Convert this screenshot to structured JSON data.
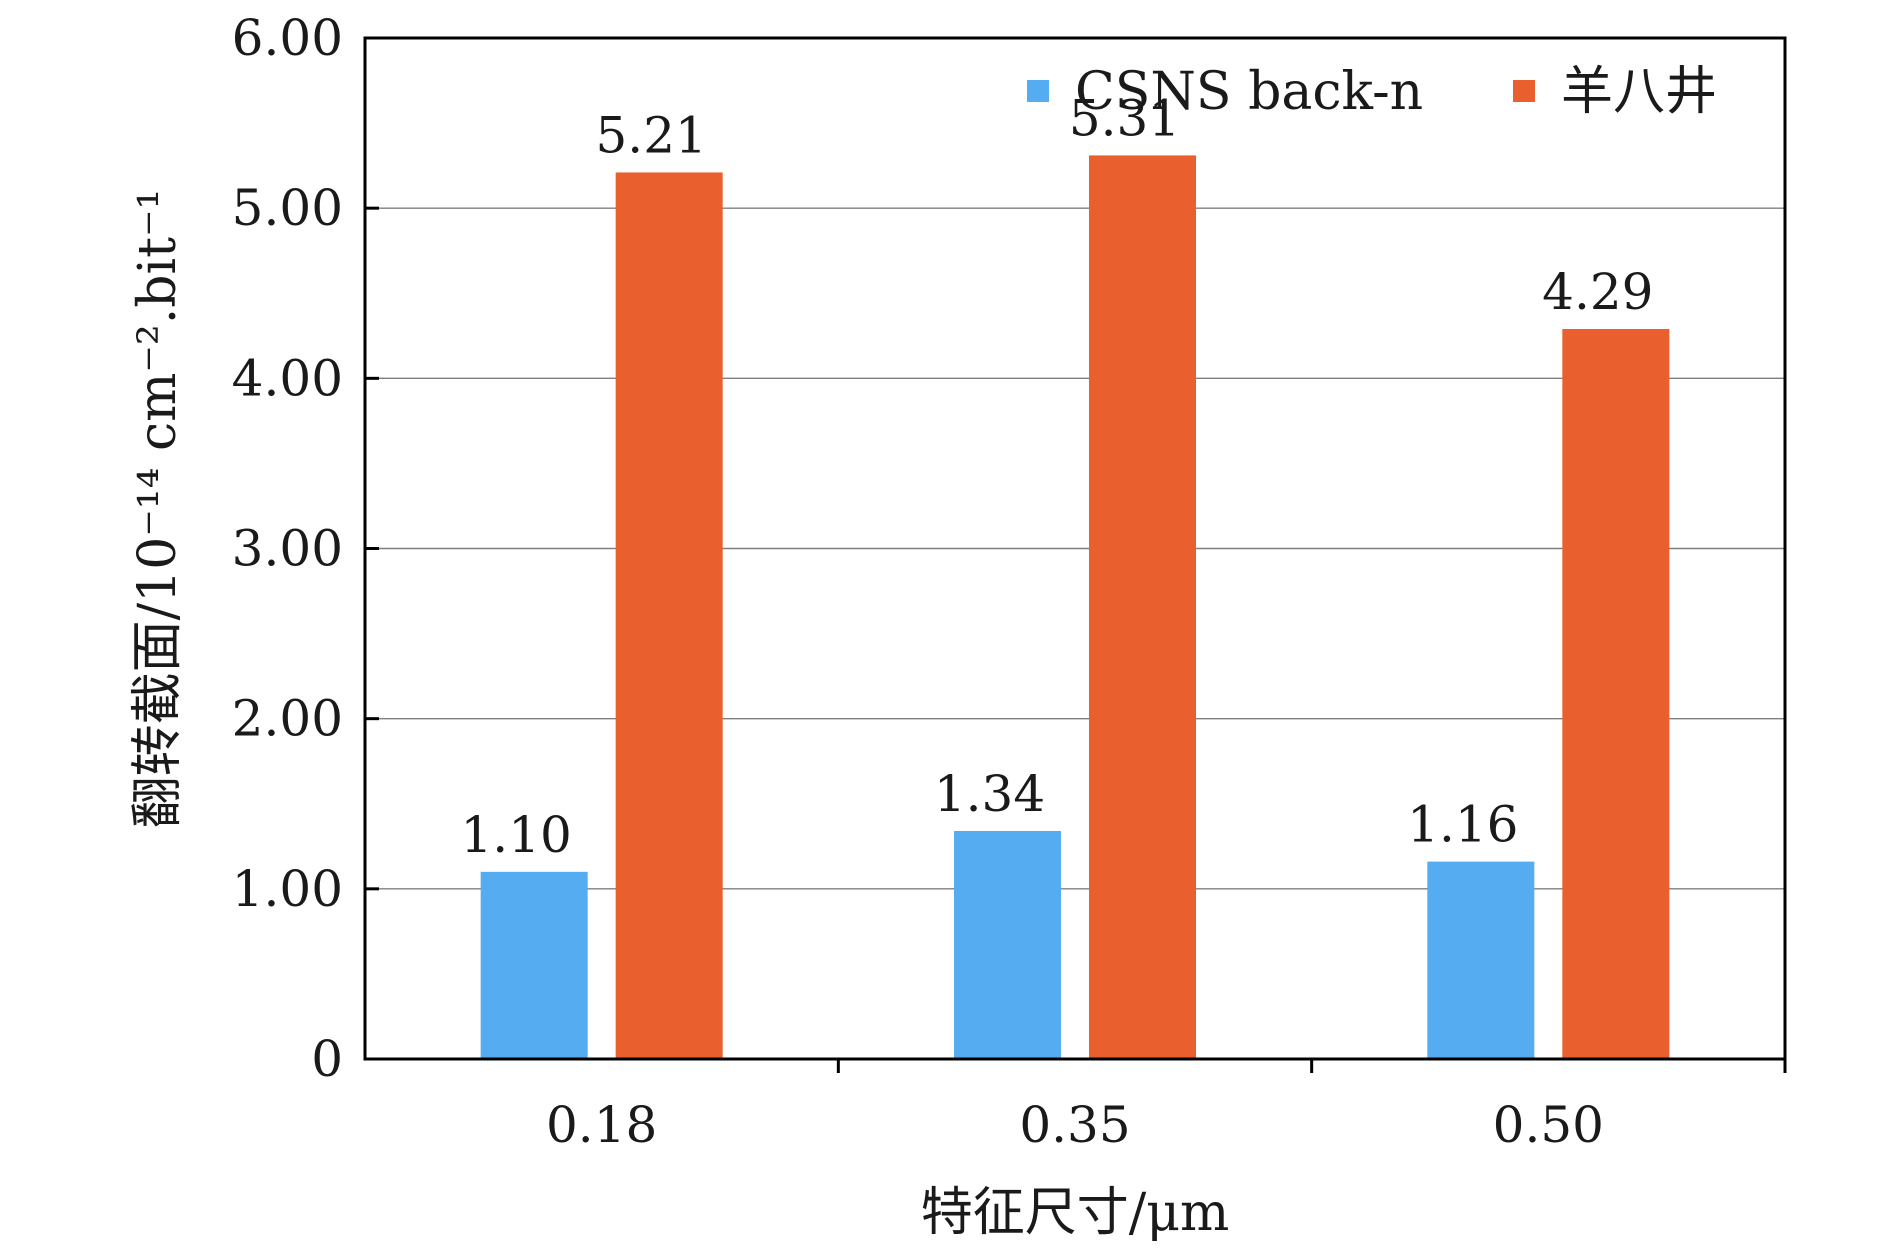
{
  "chart_data": {
    "type": "bar",
    "categories": [
      "0.18",
      "0.35",
      "0.50"
    ],
    "series": [
      {
        "name": "CSNS back-n",
        "values": [
          1.1,
          1.34,
          1.16
        ],
        "labels": [
          "1.10",
          "1.34",
          "1.16"
        ],
        "color": "#56acf0"
      },
      {
        "name": "羊八井",
        "values": [
          5.21,
          5.31,
          4.29
        ],
        "labels": [
          "5.21",
          "5.31",
          "4.29"
        ],
        "color": "#e95f2e"
      }
    ],
    "xlabel": "特征尺寸/μm",
    "ylabel": "翻转截面/10⁻¹⁴ cm⁻².bit⁻¹",
    "ylim": [
      0,
      6
    ],
    "yticks": [
      0,
      1,
      2,
      3,
      4,
      5,
      6
    ],
    "ytick_labels": [
      "0",
      "1.00",
      "2.00",
      "3.00",
      "4.00",
      "5.00",
      "6.00"
    ],
    "grid": "horizontal",
    "legend_position": "top-right",
    "axis_color": "#000000",
    "grid_color": "#7f7f7f"
  }
}
